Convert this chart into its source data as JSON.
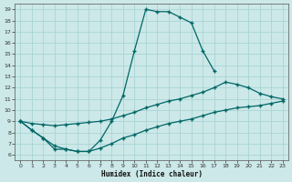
{
  "xlabel": "Humidex (Indice chaleur)",
  "bg_color": "#cce8e8",
  "line_color": "#006666",
  "grid_color": "#aad4d4",
  "xlim": [
    -0.5,
    23.5
  ],
  "ylim": [
    5.5,
    19.5
  ],
  "line1_x": [
    0,
    1,
    2,
    3,
    4,
    5,
    6,
    7,
    8,
    9,
    10,
    11,
    12,
    13,
    14,
    15,
    16,
    17
  ],
  "line1_y": [
    9.0,
    8.2,
    7.5,
    6.5,
    6.5,
    6.3,
    6.3,
    7.3,
    9.0,
    11.3,
    15.3,
    19.0,
    18.8,
    18.8,
    18.3,
    17.8,
    15.3,
    13.5
  ],
  "line2_x": [
    0,
    1,
    2,
    3,
    4,
    5,
    6,
    7,
    8,
    9,
    10,
    11,
    12,
    13,
    14,
    15,
    16,
    17,
    18,
    19,
    20,
    21,
    22,
    23
  ],
  "line2_y": [
    9.0,
    8.8,
    8.7,
    8.6,
    8.7,
    8.8,
    8.9,
    9.0,
    9.2,
    9.5,
    9.8,
    10.2,
    10.5,
    10.8,
    11.0,
    11.3,
    11.6,
    12.0,
    12.5,
    12.3,
    12.0,
    11.5,
    11.2,
    11.0
  ],
  "line3_x": [
    0,
    1,
    2,
    3,
    4,
    5,
    6,
    7,
    8,
    9,
    10,
    11,
    12,
    13,
    14,
    15,
    16,
    17,
    18,
    19,
    20,
    21,
    22,
    23
  ],
  "line3_y": [
    9.0,
    8.2,
    7.5,
    6.8,
    6.5,
    6.3,
    6.3,
    6.6,
    7.0,
    7.5,
    7.8,
    8.2,
    8.5,
    8.8,
    9.0,
    9.2,
    9.5,
    9.8,
    10.0,
    10.2,
    10.3,
    10.4,
    10.6,
    10.8
  ]
}
